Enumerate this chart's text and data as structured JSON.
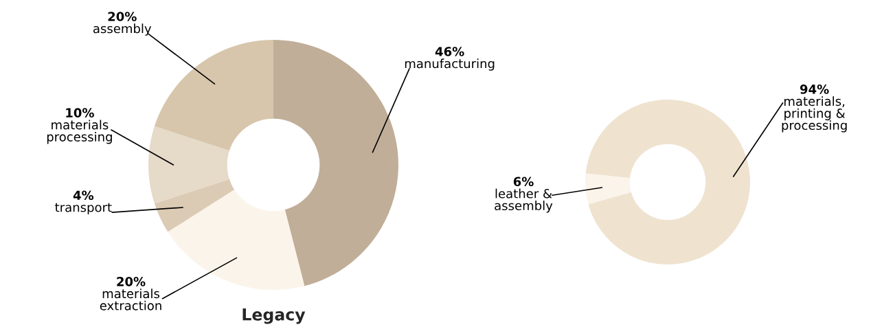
{
  "chart_data": [
    {
      "type": "donut",
      "title": "Legacy",
      "categories": [
        "manufacturing",
        "materials\nextraction",
        "transport",
        "materials\nprocessing",
        "assembly"
      ],
      "values": [
        46,
        20,
        4,
        10,
        20
      ],
      "value_labels": [
        "46%",
        "20%",
        "4%",
        "10%",
        "20%"
      ],
      "colors": [
        "#c0ae98",
        "#fbf4ea",
        "#dccbb4",
        "#e6dac8",
        "#d7c6ab"
      ]
    },
    {
      "type": "donut",
      "categories": [
        "materials,\nprinting &\nprocessing",
        "leather &\nassembly"
      ],
      "values": [
        94,
        6
      ],
      "value_labels": [
        "94%",
        "6%"
      ],
      "colors": [
        "#efe3d0",
        "#fbf4ea"
      ]
    }
  ]
}
